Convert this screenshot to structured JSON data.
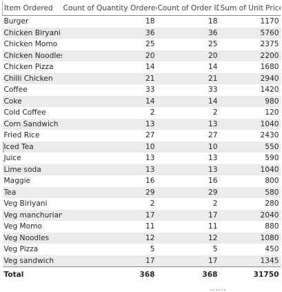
{
  "table": {
    "columns": [
      "Item Ordered",
      "Count of Quantity Ordered",
      "Count of Order ID",
      "Sum of Unit Price"
    ],
    "rows": [
      {
        "item": "Burger",
        "qty": "18",
        "orders": "18",
        "price": "1170"
      },
      {
        "item": "Chicken Biryani",
        "qty": "36",
        "orders": "36",
        "price": "5760"
      },
      {
        "item": "Chicken Momo",
        "qty": "25",
        "orders": "25",
        "price": "2375"
      },
      {
        "item": "Chicken Noodles",
        "qty": "20",
        "orders": "20",
        "price": "2200"
      },
      {
        "item": "Chicken Pizza",
        "qty": "14",
        "orders": "14",
        "price": "1680"
      },
      {
        "item": "Chilli Chicken",
        "qty": "21",
        "orders": "21",
        "price": "2940"
      },
      {
        "item": "Coffee",
        "qty": "33",
        "orders": "33",
        "price": "1420"
      },
      {
        "item": "Coke",
        "qty": "14",
        "orders": "14",
        "price": "980"
      },
      {
        "item": "Cold Coffee",
        "qty": "2",
        "orders": "2",
        "price": "120"
      },
      {
        "item": "Corn Sandwich",
        "qty": "13",
        "orders": "13",
        "price": "1040"
      },
      {
        "item": "Fried Rice",
        "qty": "27",
        "orders": "27",
        "price": "2430"
      },
      {
        "item": "Iced Tea",
        "qty": "10",
        "orders": "10",
        "price": "550"
      },
      {
        "item": "Juice",
        "qty": "13",
        "orders": "13",
        "price": "590"
      },
      {
        "item": "Lime soda",
        "qty": "13",
        "orders": "13",
        "price": "1040"
      },
      {
        "item": "Maggie",
        "qty": "16",
        "orders": "16",
        "price": "800"
      },
      {
        "item": "Tea",
        "qty": "29",
        "orders": "29",
        "price": "580"
      },
      {
        "item": "Veg Biriyani",
        "qty": "2",
        "orders": "2",
        "price": "280"
      },
      {
        "item": "Veg manchurian",
        "qty": "17",
        "orders": "17",
        "price": "2040"
      },
      {
        "item": "Veg Momo",
        "qty": "11",
        "orders": "11",
        "price": "880"
      },
      {
        "item": "Veg Noodles",
        "qty": "12",
        "orders": "12",
        "price": "1080"
      },
      {
        "item": "Veg Pizza",
        "qty": "5",
        "orders": "5",
        "price": "450"
      },
      {
        "item": "Veg sandwich",
        "qty": "17",
        "orders": "17",
        "price": "1345"
      }
    ],
    "total": {
      "label": "Total",
      "qty": "368",
      "orders": "368",
      "price": "31750"
    }
  },
  "colors": {
    "stripe": "#ebebeb",
    "text": "#252423",
    "header_text": "#404040",
    "border": "#8a8a8a"
  }
}
